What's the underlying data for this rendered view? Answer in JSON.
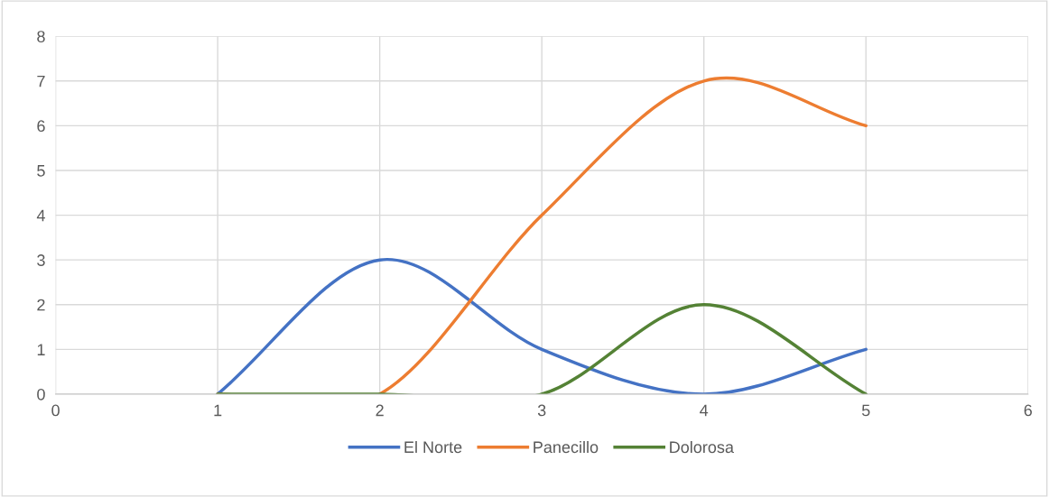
{
  "chart_data": {
    "type": "line",
    "xlim": [
      0,
      6
    ],
    "xticks": [
      0,
      1,
      2,
      3,
      4,
      5,
      6
    ],
    "ylim": [
      0,
      8
    ],
    "yticks": [
      0,
      1,
      2,
      3,
      4,
      5,
      6,
      7,
      8
    ],
    "grid": true,
    "legend": "bottom",
    "marker": "none",
    "line_style": "solid",
    "series": [
      {
        "name": "El Norte",
        "color": "#4472c4",
        "x": [
          1,
          2,
          3,
          4,
          5
        ],
        "values": [
          0,
          3,
          1,
          0,
          1
        ]
      },
      {
        "name": "Panecillo",
        "color": "#ed7d31",
        "x": [
          1,
          2,
          3,
          4,
          5
        ],
        "values": [
          0,
          0,
          4,
          7,
          6
        ]
      },
      {
        "name": "Dolorosa",
        "color": "#548235",
        "x": [
          1,
          2,
          3,
          4,
          5
        ],
        "values": [
          0,
          0,
          0,
          2,
          0
        ]
      }
    ]
  }
}
